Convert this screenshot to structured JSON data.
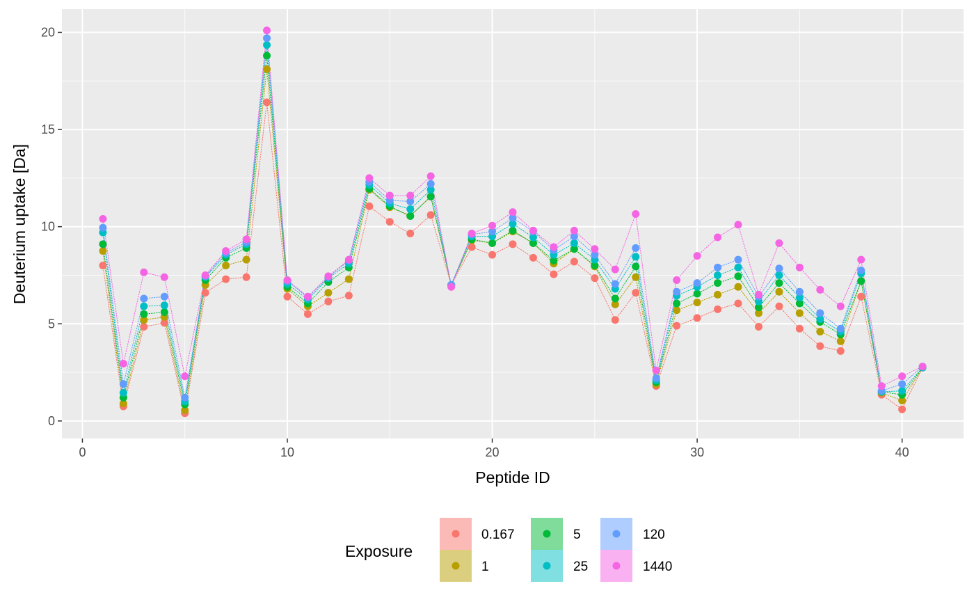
{
  "chart_data": {
    "type": "line",
    "xlabel": "Peptide ID",
    "ylabel": "Deuterium uptake [Da]",
    "xlim": [
      -1,
      43
    ],
    "ylim": [
      -0.9,
      21.2
    ],
    "x_ticks": [
      0,
      10,
      20,
      30,
      40
    ],
    "y_ticks": [
      0,
      5,
      10,
      15,
      20
    ],
    "grid": true,
    "legend_title": "Exposure",
    "legend_position": "bottom",
    "x": [
      1,
      2,
      3,
      4,
      5,
      6,
      7,
      8,
      9,
      10,
      11,
      12,
      13,
      14,
      15,
      16,
      17,
      18,
      19,
      20,
      21,
      22,
      23,
      24,
      25,
      26,
      27,
      28,
      29,
      30,
      31,
      32,
      33,
      34,
      35,
      36,
      37,
      38,
      39,
      40,
      41
    ],
    "series": [
      {
        "name": "0.167",
        "color": "#F8766D",
        "values": [
          8.0,
          0.75,
          4.85,
          5.05,
          0.4,
          6.6,
          7.3,
          7.4,
          16.4,
          6.4,
          5.5,
          6.15,
          6.45,
          11.05,
          10.25,
          9.65,
          10.6,
          7.0,
          8.95,
          8.55,
          9.1,
          8.4,
          7.55,
          8.2,
          7.35,
          5.2,
          6.6,
          1.8,
          4.9,
          5.3,
          5.75,
          6.05,
          4.85,
          5.9,
          4.75,
          3.85,
          3.6,
          6.4,
          1.35,
          0.6,
          2.75
        ]
      },
      {
        "name": "1",
        "color": "#B79F00",
        "values": [
          8.75,
          0.9,
          5.2,
          5.35,
          0.55,
          7.0,
          8.0,
          8.3,
          18.1,
          6.8,
          5.9,
          6.6,
          7.3,
          11.9,
          11.0,
          10.55,
          11.55,
          7.0,
          9.3,
          9.15,
          9.75,
          9.15,
          8.1,
          8.85,
          7.95,
          6.0,
          7.4,
          1.9,
          5.7,
          6.1,
          6.5,
          6.9,
          5.55,
          6.65,
          5.55,
          4.6,
          4.1,
          7.2,
          1.45,
          1.05,
          2.75
        ]
      },
      {
        "name": "5",
        "color": "#00BA38",
        "values": [
          9.1,
          1.2,
          5.5,
          5.6,
          0.85,
          7.25,
          8.4,
          8.9,
          18.8,
          6.9,
          6.05,
          7.15,
          7.9,
          11.95,
          11.05,
          10.55,
          11.55,
          7.0,
          9.35,
          9.15,
          9.8,
          9.15,
          8.25,
          8.85,
          8.0,
          6.3,
          7.95,
          2.0,
          6.05,
          6.55,
          7.1,
          7.45,
          5.85,
          7.1,
          6.05,
          5.1,
          4.45,
          7.2,
          1.5,
          1.35,
          2.75
        ]
      },
      {
        "name": "25",
        "color": "#00BFC4",
        "values": [
          9.7,
          1.45,
          5.9,
          5.95,
          1.0,
          7.4,
          8.55,
          9.1,
          19.35,
          7.05,
          6.25,
          7.35,
          8.1,
          12.15,
          11.2,
          10.9,
          11.9,
          7.0,
          9.5,
          9.5,
          10.15,
          9.45,
          8.55,
          9.15,
          8.3,
          6.8,
          8.45,
          2.1,
          6.45,
          6.9,
          7.5,
          7.9,
          6.15,
          7.5,
          6.35,
          5.25,
          4.6,
          7.6,
          1.5,
          1.55,
          2.75
        ]
      },
      {
        "name": "120",
        "color": "#619CFF",
        "values": [
          9.95,
          1.9,
          6.3,
          6.4,
          1.2,
          7.45,
          8.65,
          9.2,
          19.7,
          7.2,
          6.35,
          7.4,
          8.25,
          12.3,
          11.35,
          11.3,
          12.2,
          7.0,
          9.6,
          9.75,
          10.45,
          9.75,
          8.8,
          9.5,
          8.55,
          7.05,
          8.9,
          2.2,
          6.65,
          7.1,
          7.9,
          8.3,
          6.4,
          7.85,
          6.65,
          5.55,
          4.75,
          7.75,
          1.55,
          1.9,
          2.8
        ]
      },
      {
        "name": "1440",
        "color": "#F564E3",
        "values": [
          10.4,
          2.95,
          7.65,
          7.4,
          2.3,
          7.5,
          8.75,
          9.35,
          20.1,
          7.25,
          6.4,
          7.45,
          8.3,
          12.5,
          11.6,
          11.6,
          12.6,
          6.9,
          9.65,
          10.05,
          10.75,
          9.8,
          8.95,
          9.8,
          8.85,
          7.8,
          10.65,
          2.6,
          7.25,
          8.5,
          9.45,
          10.1,
          6.5,
          9.15,
          7.9,
          6.75,
          5.9,
          8.3,
          1.8,
          2.3,
          2.8
        ]
      }
    ]
  }
}
